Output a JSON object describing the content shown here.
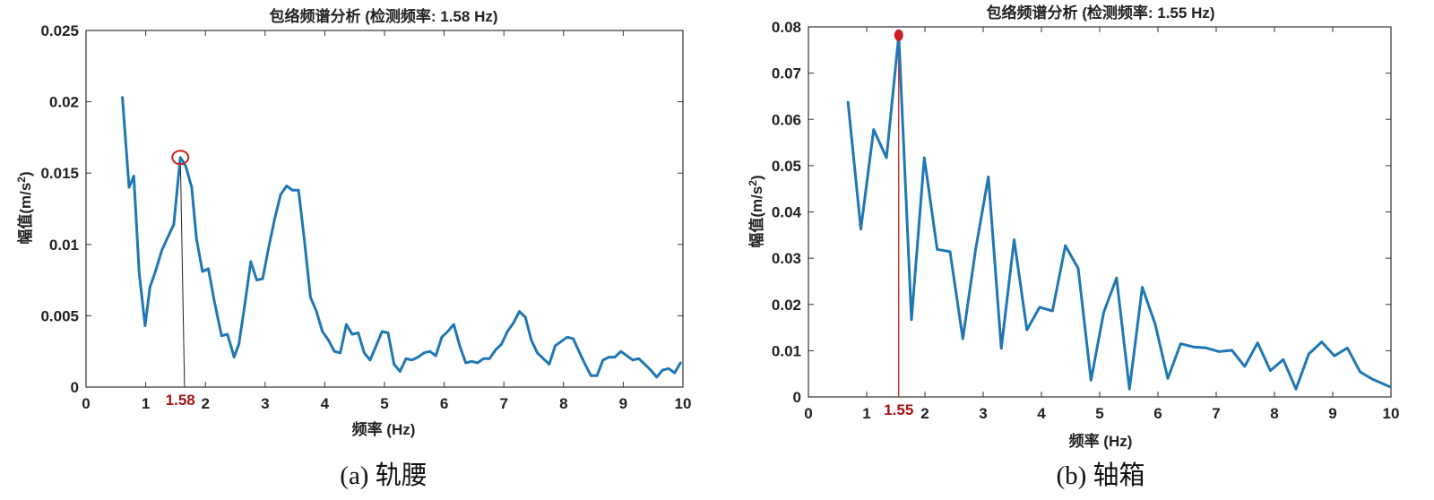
{
  "chart_data": [
    {
      "type": "line",
      "title": "包络频谱分析 (检测频率: 1.58 Hz)",
      "xlabel": "频率 (Hz)",
      "ylabel": "幅值(m/s2)",
      "xlim": [
        0,
        10
      ],
      "ylim": [
        0,
        0.025
      ],
      "xticks": [
        0,
        1,
        2,
        3,
        4,
        5,
        6,
        7,
        8,
        9,
        10
      ],
      "yticks": [
        0,
        0.005,
        0.01,
        0.015,
        0.02,
        0.025
      ],
      "ytick_labels": [
        "0",
        "0.005",
        "0.01",
        "0.015",
        "0.02",
        "0.025"
      ],
      "grid": false,
      "line_color": "#1f77b4",
      "peak_color": "#cc1f1f",
      "peak": {
        "x": 1.58,
        "y": 0.0161,
        "label": "1.58",
        "marker": "circle-open"
      },
      "caption": "(a) 轨腰",
      "x": [
        0.61,
        0.72,
        0.8,
        0.89,
        0.99,
        1.07,
        1.17,
        1.27,
        1.37,
        1.47,
        1.58,
        1.67,
        1.77,
        1.85,
        1.95,
        2.05,
        2.15,
        2.27,
        2.37,
        2.48,
        2.56,
        2.66,
        2.76,
        2.86,
        2.96,
        3.06,
        3.16,
        3.26,
        3.36,
        3.46,
        3.56,
        3.66,
        3.76,
        3.86,
        3.96,
        4.06,
        4.16,
        4.26,
        4.36,
        4.46,
        4.56,
        4.66,
        4.76,
        4.86,
        4.96,
        5.06,
        5.16,
        5.26,
        5.36,
        5.46,
        5.56,
        5.66,
        5.76,
        5.86,
        5.96,
        6.06,
        6.16,
        6.26,
        6.36,
        6.46,
        6.56,
        6.66,
        6.76,
        6.86,
        6.96,
        7.06,
        7.16,
        7.26,
        7.36,
        7.46,
        7.56,
        7.66,
        7.76,
        7.86,
        7.96,
        8.06,
        8.16,
        8.26,
        8.36,
        8.46,
        8.56,
        8.66,
        8.76,
        8.86,
        8.96,
        9.06,
        9.16,
        9.26,
        9.36,
        9.46,
        9.56,
        9.66,
        9.76,
        9.86,
        9.96
      ],
      "y": [
        0.0203,
        0.014,
        0.0148,
        0.008,
        0.0043,
        0.007,
        0.0082,
        0.0096,
        0.0105,
        0.0114,
        0.0161,
        0.0155,
        0.014,
        0.0104,
        0.0081,
        0.0083,
        0.006,
        0.0036,
        0.0037,
        0.0021,
        0.003,
        0.0058,
        0.0088,
        0.0075,
        0.0076,
        0.0098,
        0.0118,
        0.0135,
        0.0141,
        0.0138,
        0.0138,
        0.0102,
        0.0063,
        0.0053,
        0.0039,
        0.0033,
        0.0025,
        0.0024,
        0.0044,
        0.0037,
        0.0038,
        0.0024,
        0.0019,
        0.0029,
        0.0039,
        0.0038,
        0.0016,
        0.0011,
        0.002,
        0.0019,
        0.0021,
        0.0024,
        0.0025,
        0.0022,
        0.0035,
        0.0039,
        0.0044,
        0.0029,
        0.0017,
        0.0018,
        0.0017,
        0.002,
        0.002,
        0.0026,
        0.003,
        0.0039,
        0.0045,
        0.0053,
        0.0049,
        0.0033,
        0.0024,
        0.002,
        0.0016,
        0.0029,
        0.0032,
        0.0035,
        0.0034,
        0.0025,
        0.0016,
        0.0008,
        0.0008,
        0.0019,
        0.0021,
        0.0021,
        0.0025,
        0.0022,
        0.0019,
        0.002,
        0.0016,
        0.0012,
        0.0007,
        0.0012,
        0.0013,
        0.001,
        0.0017
      ]
    },
    {
      "type": "line",
      "title": "包络频谱分析 (检测频率: 1.55 Hz)",
      "xlabel": "频率 (Hz)",
      "ylabel": "幅值(m/s2)",
      "xlim": [
        0,
        10
      ],
      "ylim": [
        0,
        0.08
      ],
      "xticks": [
        0,
        1,
        2,
        3,
        4,
        5,
        6,
        7,
        8,
        9,
        10
      ],
      "yticks": [
        0,
        0.01,
        0.02,
        0.03,
        0.04,
        0.05,
        0.06,
        0.07,
        0.08
      ],
      "ytick_labels": [
        "0",
        "0.01",
        "0.02",
        "0.03",
        "0.04",
        "0.05",
        "0.06",
        "0.07",
        "0.08"
      ],
      "grid": false,
      "line_color": "#1f77b4",
      "peak_color": "#cc1f1f",
      "peak": {
        "x": 1.55,
        "y": 0.0782,
        "label": "1.55",
        "marker": "circle-filled"
      },
      "caption": "(b) 轴箱",
      "x": [
        0.68,
        0.9,
        1.12,
        1.34,
        1.55,
        1.77,
        1.99,
        2.21,
        2.43,
        2.65,
        2.87,
        3.09,
        3.31,
        3.53,
        3.75,
        3.97,
        4.19,
        4.41,
        4.63,
        4.85,
        5.07,
        5.29,
        5.51,
        5.73,
        5.95,
        6.17,
        6.39,
        6.61,
        6.83,
        7.05,
        7.27,
        7.49,
        7.71,
        7.93,
        8.15,
        8.37,
        8.59,
        8.81,
        9.03,
        9.25,
        9.47,
        9.69,
        9.98
      ],
      "y": [
        0.0637,
        0.0363,
        0.0578,
        0.0517,
        0.0782,
        0.0167,
        0.0517,
        0.0319,
        0.0314,
        0.0126,
        0.0318,
        0.0476,
        0.0105,
        0.034,
        0.0145,
        0.0194,
        0.0186,
        0.0327,
        0.0278,
        0.0036,
        0.0183,
        0.0257,
        0.0017,
        0.0237,
        0.0158,
        0.004,
        0.0115,
        0.0108,
        0.0106,
        0.0098,
        0.0101,
        0.0066,
        0.0117,
        0.0057,
        0.0081,
        0.0017,
        0.0093,
        0.0119,
        0.0089,
        0.0106,
        0.0054,
        0.0038,
        0.0022
      ]
    }
  ]
}
